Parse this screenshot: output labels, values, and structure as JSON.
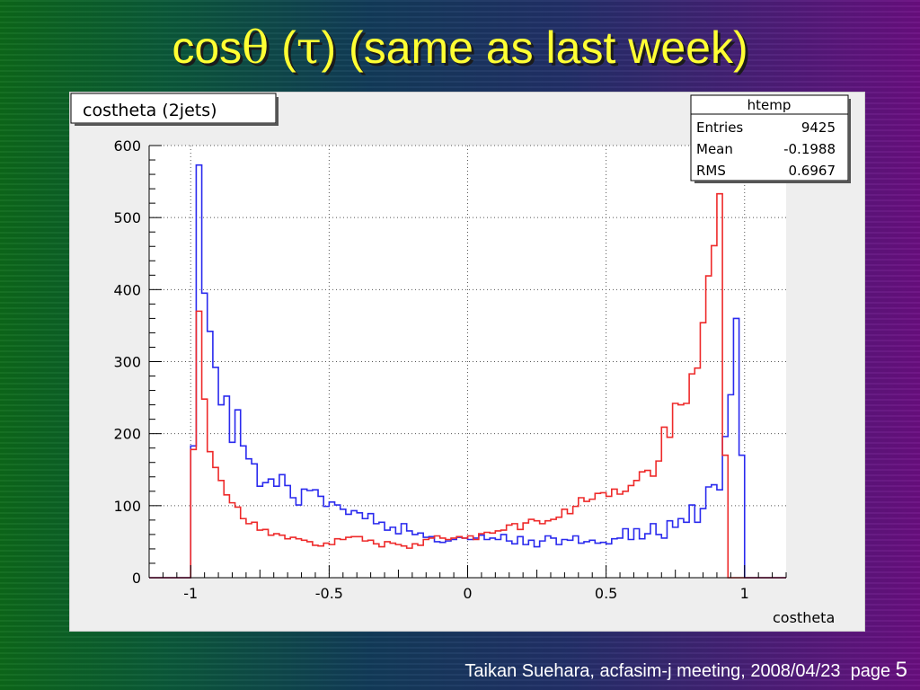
{
  "slide": {
    "title_prefix": "cos",
    "title_theta": "θ",
    "title_mid": " (",
    "title_tau": "τ",
    "title_suffix": ") (same as last week)",
    "footer_text": "Taikan Suehara, acfasim-j meeting, 2008/04/23",
    "page_label": "page",
    "page_number": "5",
    "title_color": "#ffff33"
  },
  "chart_data": {
    "type": "line",
    "title": "costheta (2jets)",
    "xlabel": "costheta",
    "ylabel": "",
    "xlim": [
      -1.15,
      1.15
    ],
    "ylim": [
      0,
      600
    ],
    "x_ticks": [
      -1,
      -0.5,
      0,
      0.5,
      1
    ],
    "x_tick_labels": [
      "-1",
      "-0.5",
      "0",
      "0.5",
      "1"
    ],
    "y_ticks": [
      0,
      100,
      200,
      300,
      400,
      500,
      600
    ],
    "y_tick_labels": [
      "0",
      "100",
      "200",
      "300",
      "400",
      "500",
      "600"
    ],
    "grid": true,
    "bins": {
      "start": -1.0,
      "width": 0.02,
      "count": 100
    },
    "stats_box": {
      "title": "htemp",
      "rows": [
        {
          "label": "Entries",
          "value": "9425"
        },
        {
          "label": "Mean",
          "value": "-0.1988"
        },
        {
          "label": "RMS",
          "value": "0.6967"
        }
      ]
    },
    "series": [
      {
        "color": "#2a2aee",
        "values": [
          183,
          573,
          395,
          342,
          292,
          240,
          252,
          188,
          233,
          183,
          165,
          158,
          127,
          132,
          137,
          127,
          143,
          128,
          111,
          101,
          123,
          121,
          122,
          113,
          99,
          105,
          101,
          95,
          88,
          93,
          90,
          82,
          89,
          75,
          77,
          66,
          70,
          61,
          75,
          65,
          60,
          62,
          56,
          57,
          50,
          49,
          51,
          53,
          56,
          55,
          53,
          55,
          59,
          53,
          55,
          53,
          60,
          51,
          47,
          57,
          46,
          52,
          43,
          51,
          58,
          55,
          46,
          53,
          52,
          58,
          48,
          50,
          52,
          48,
          49,
          47,
          54,
          55,
          68,
          53,
          68,
          54,
          61,
          75,
          60,
          55,
          79,
          70,
          82,
          77,
          101,
          77,
          96,
          126,
          129,
          122,
          196,
          254,
          360,
          170
        ]
      },
      {
        "color": "#ee2a2a",
        "values": [
          178,
          370,
          248,
          175,
          153,
          135,
          115,
          104,
          98,
          82,
          75,
          77,
          66,
          67,
          59,
          61,
          59,
          54,
          56,
          54,
          52,
          50,
          45,
          44,
          48,
          46,
          54,
          53,
          56,
          57,
          57,
          51,
          52,
          47,
          43,
          50,
          48,
          46,
          44,
          41,
          47,
          45,
          53,
          55,
          58,
          55,
          53,
          55,
          57,
          55,
          58,
          53,
          61,
          63,
          62,
          65,
          66,
          73,
          75,
          67,
          76,
          81,
          79,
          75,
          79,
          81,
          84,
          95,
          89,
          99,
          111,
          106,
          109,
          117,
          118,
          113,
          123,
          116,
          120,
          128,
          135,
          147,
          149,
          141,
          162,
          209,
          195,
          242,
          240,
          242,
          283,
          291,
          354,
          419,
          461,
          533,
          170,
          0,
          0,
          0
        ]
      }
    ]
  }
}
